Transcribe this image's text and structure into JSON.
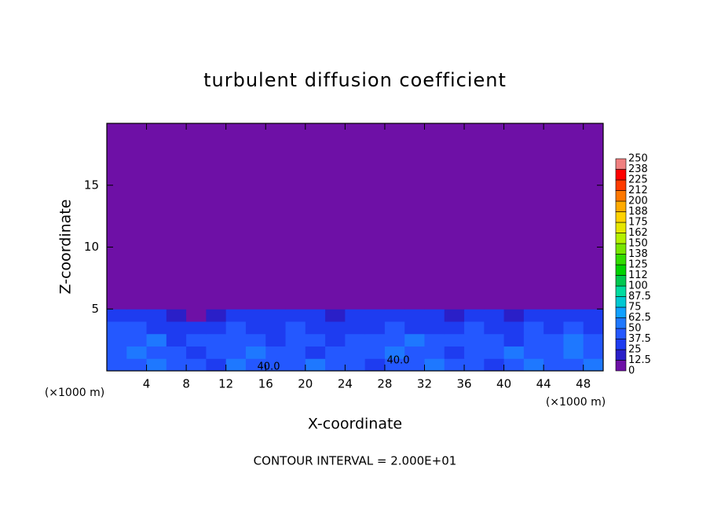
{
  "chart_data": {
    "type": "contour",
    "title": "turbulent diffusion coefficient",
    "xlabel": "X-coordinate",
    "ylabel": "Z-coordinate",
    "x_unit_left": "(×1000 m)",
    "x_unit_right": "(×1000 m)",
    "annotation": "CONTOUR INTERVAL = 2.000E+01",
    "contour_labels": [
      "40.0",
      "40.0"
    ],
    "xlim": [
      0,
      50
    ],
    "xticks": [
      4,
      8,
      12,
      16,
      20,
      24,
      28,
      32,
      36,
      40,
      44,
      48
    ],
    "ylim": [
      0,
      20
    ],
    "yticks": [
      5,
      10,
      15
    ],
    "field": {
      "xbins": [
        0,
        2,
        4,
        6,
        8,
        10,
        12,
        14,
        16,
        18,
        20,
        22,
        24,
        26,
        28,
        30,
        32,
        34,
        36,
        38,
        40,
        42,
        44,
        46,
        48,
        50
      ],
      "zbins": [
        0,
        1,
        2,
        3,
        4,
        5,
        20
      ],
      "values": [
        [
          45,
          40,
          50,
          45,
          40,
          35,
          55,
          45,
          40,
          45,
          50,
          40,
          45,
          35,
          40,
          45,
          50,
          45,
          40,
          35,
          45,
          50,
          40,
          45,
          50
        ],
        [
          40,
          55,
          45,
          40,
          35,
          40,
          45,
          50,
          45,
          40,
          35,
          45,
          40,
          45,
          50,
          40,
          45,
          35,
          45,
          40,
          50,
          45,
          40,
          55,
          45
        ],
        [
          45,
          40,
          50,
          35,
          40,
          45,
          40,
          45,
          35,
          45,
          40,
          30,
          45,
          40,
          45,
          50,
          40,
          45,
          40,
          45,
          35,
          40,
          45,
          50,
          40
        ],
        [
          40,
          45,
          35,
          30,
          25,
          35,
          40,
          30,
          35,
          40,
          30,
          25,
          30,
          35,
          40,
          35,
          30,
          35,
          40,
          30,
          35,
          40,
          30,
          45,
          35
        ],
        [
          30,
          35,
          25,
          15,
          10,
          20,
          30,
          35,
          30,
          25,
          30,
          20,
          25,
          30,
          35,
          30,
          25,
          20,
          30,
          25,
          20,
          30,
          25,
          35,
          30
        ],
        [
          0,
          0,
          0,
          0,
          0,
          0,
          0,
          0,
          0,
          0,
          0,
          0,
          0,
          0,
          0,
          0,
          0,
          0,
          0,
          0,
          0,
          0,
          0,
          0,
          0
        ]
      ]
    },
    "colorbar": {
      "ticks": [
        0,
        12.5,
        25,
        37.5,
        50,
        62.5,
        75,
        87.5,
        100,
        {
          "value": 112.5,
          "label": "112"
        },
        125,
        {
          "value": 137.5,
          "label": "138"
        },
        150,
        {
          "value": 162.5,
          "label": "162"
        },
        175,
        {
          "value": 187.5,
          "label": "188"
        },
        200,
        {
          "value": 212.5,
          "label": "212"
        },
        225,
        {
          "value": 237.5,
          "label": "238"
        },
        250
      ],
      "colors": [
        "#6e10a6",
        "#2a1fc8",
        "#1e3cf0",
        "#2458ff",
        "#1e78ff",
        "#10a0ff",
        "#00c8d2",
        "#00dca0",
        "#00c850",
        "#00d200",
        "#32dc00",
        "#78e600",
        "#b4f000",
        "#e6e600",
        "#ffd200",
        "#ffaa00",
        "#ff7800",
        "#ff3c00",
        "#ff0000",
        "#f08080"
      ]
    }
  }
}
